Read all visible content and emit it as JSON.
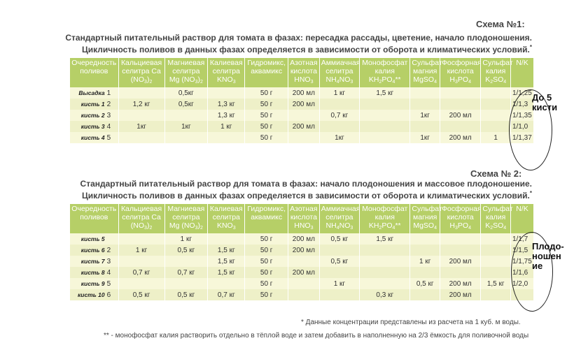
{
  "scheme1": {
    "label": "Схема №1:",
    "title_line1": "Стандартный питательный раствор для томата в фазах:  пересадка рассады, цветение, начало плодоношения.",
    "title_line2": "Цикличность поливов в данных фазах определяется в зависимости от оборота и климатических условий.",
    "title_star": "*",
    "headers": [
      {
        "text": "Очередность поливов"
      },
      {
        "text": "Кальциевая селитра Ca (NO",
        "sub": "3",
        "tail": ")",
        "sub2": "2"
      },
      {
        "text": "Магниевая селитра Mg (NO",
        "sub": "3",
        "tail": ")",
        "sub2": "2"
      },
      {
        "text": "Калиевая селитра KNO",
        "sub": "3"
      },
      {
        "text": "Гидромикс, аквамикс"
      },
      {
        "text": "Азотная кислота HNO",
        "sub": "3"
      },
      {
        "text": "Аммиачная селитра NH",
        "sub": "4",
        "tail": "NO",
        "sub2": "3"
      },
      {
        "text": "Монофосфат калия KH",
        "sub": "2",
        "tail": "PO",
        "sub2": "4",
        "tail2": "**"
      },
      {
        "text": "Сульфат магния MgSO",
        "sub": "4"
      },
      {
        "text": "Фосфорная кислота H",
        "sub": "3",
        "tail": "PO",
        "sub2": "4"
      },
      {
        "text": "Сульфат калия K",
        "sub": "2",
        "tail": "SO",
        "sub2": "4"
      },
      {
        "text": "N/K"
      }
    ],
    "rows": [
      {
        "label": "Высадка",
        "num": "1",
        "cells": [
          "",
          "0,5кг",
          "",
          "50 г",
          "200 мл",
          "1 кг",
          "1,5 кг",
          "",
          "",
          "",
          "1/1,25"
        ]
      },
      {
        "label": "кисть 1",
        "num": "2",
        "cells": [
          "1,2 кг",
          "0,5кг",
          "1,3 кг",
          "50 г",
          "200 мл",
          "",
          "",
          "",
          "",
          "",
          "1/1,3"
        ]
      },
      {
        "label": "кисть 2",
        "num": "3",
        "cells": [
          "",
          "",
          "1,3 кг",
          "50 г",
          "",
          "0,7 кг",
          "",
          "1кг",
          "200 мл",
          "",
          "1/1,35"
        ]
      },
      {
        "label": "кисть 3",
        "num": "4",
        "cells": [
          "1кг",
          "1кг",
          "1 кг",
          "50 г",
          "200 мл",
          "",
          "",
          "",
          "",
          "",
          "1/1,0"
        ]
      },
      {
        "label": "кисть 4",
        "num": "5",
        "cells": [
          "",
          "",
          "",
          "50 г",
          "",
          "1кг",
          "",
          "1кг",
          "200 мл",
          "1",
          "1/1,37"
        ]
      }
    ],
    "note": "До 5 кисти"
  },
  "scheme2": {
    "label": "Схема № 2:",
    "title_line1": "Стандартный питательный раствор для томата в фазах:  начало плодоношения и массовое плодоношение.",
    "title_line2": "Цикличность поливов в данных фазах определяется в зависимости от оборота и климатических условий.",
    "title_star": "*",
    "headers": [
      {
        "text": "Очередность поливов"
      },
      {
        "text": "Кальциевая селитра Ca (NO",
        "sub": "3",
        "tail": ")",
        "sub2": "2"
      },
      {
        "text": "Магниевая селитра Mg (NO",
        "sub": "3",
        "tail": ")",
        "sub2": "2"
      },
      {
        "text": "Калиевая селитра KNO",
        "sub": "3"
      },
      {
        "text": "Гидромикс, аквамикс"
      },
      {
        "text": "Азотная кислота HNO",
        "sub": "3"
      },
      {
        "text": "Аммиачная селитра NH",
        "sub": "4",
        "tail": "NO",
        "sub2": "3"
      },
      {
        "text": "Монофосфат калия KH",
        "sub": "2",
        "tail": "PO",
        "sub2": "4",
        "tail2": "**"
      },
      {
        "text": "Сульфат магния MgSO",
        "sub": "4"
      },
      {
        "text": "Фосфорная кислота H",
        "sub": "3",
        "tail": "PO",
        "sub2": "4"
      },
      {
        "text": "Сульфат калия K",
        "sub": "2",
        "tail": "SO",
        "sub2": "4"
      },
      {
        "text": "N/K"
      }
    ],
    "rows": [
      {
        "label": "кисть 5",
        "num": "",
        "cells": [
          "",
          "1 кг",
          "",
          "50 г",
          "200 мл",
          "0,5 кг",
          "1,5 кг",
          "",
          "",
          "",
          "1/1,7"
        ]
      },
      {
        "label": "кисть 6",
        "num": "2",
        "cells": [
          "1 кг",
          "0,5 кг",
          "1,5 кг",
          "50 г",
          "200 мл",
          "",
          "",
          "",
          "",
          "",
          "1/1,5"
        ]
      },
      {
        "label": "кисть 7",
        "num": "3",
        "cells": [
          "",
          "",
          "1,5 кг",
          "50 г",
          "",
          "0,5 кг",
          "",
          "1 кг",
          "200 мл",
          "",
          "1/1,75"
        ]
      },
      {
        "label": "кисть 8",
        "num": "4",
        "cells": [
          "0,7 кг",
          "0,7 кг",
          "1,5 кг",
          "50 г",
          "200 мл",
          "",
          "",
          "",
          "",
          "",
          "1/1,6"
        ]
      },
      {
        "label": "кисть 9",
        "num": "5",
        "cells": [
          "",
          "",
          "",
          "50 г",
          "",
          "1 кг",
          "",
          "0,5 кг",
          "200 мл",
          "1,5 кг",
          "1/2,0"
        ]
      },
      {
        "label": "кисть 10",
        "num": "6",
        "cells": [
          "0,5 кг",
          "0,5 кг",
          "0,7 кг",
          "50 г",
          "",
          "",
          "0,3 кг",
          "",
          "200 мл",
          "",
          ""
        ]
      }
    ],
    "note": "Плодо- ношен ие"
  },
  "footnote1": "*  Данные концентрации представлены из расчета на 1 куб. м воды.",
  "footnote2": "** -  монофосфат калия растворить отдельно в тёплой воде и затем добавить в наполненную на 2/3 ёмкость для поливочной воды"
}
